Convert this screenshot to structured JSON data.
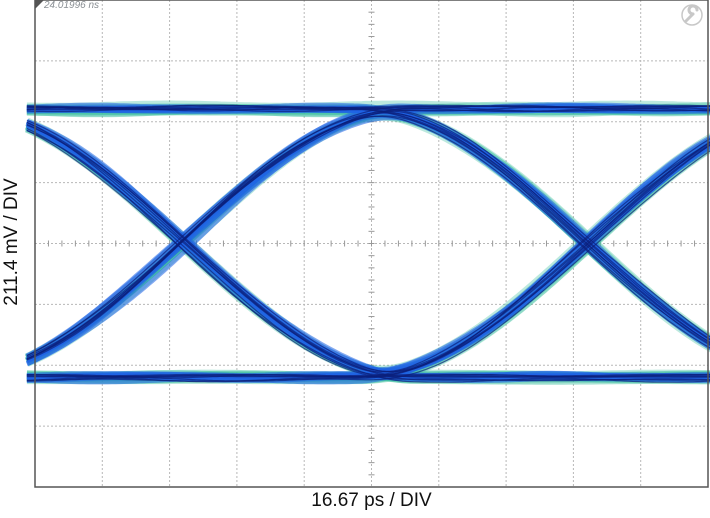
{
  "header": {
    "timestamp": "24.01996 ns",
    "tool_icon": "wrench-icon"
  },
  "chart_data": {
    "type": "line",
    "subtype": "eye diagram",
    "xlabel": "16.67 ps / DIV",
    "ylabel": "211.4 mV / DIV",
    "x_divisions": 10,
    "y_divisions": 8,
    "x_per_div_ps": 16.67,
    "y_per_div_mV": 211.4,
    "xlim_ps": [
      0,
      166.7
    ],
    "ylim_mV": [
      -845.6,
      845.6
    ],
    "grid": true,
    "unit_interval_ps": 100,
    "crossings_ps": [
      36.7,
      136.7
    ],
    "high_level_mV": 467,
    "low_level_mV": -465,
    "crossing_level_mV": 4,
    "colors": {
      "outer": "#3fc0a0",
      "mid": "#1f63e6",
      "core": "#0b1f7a",
      "grid": "#b8b8b8",
      "frame": "#555555"
    }
  }
}
